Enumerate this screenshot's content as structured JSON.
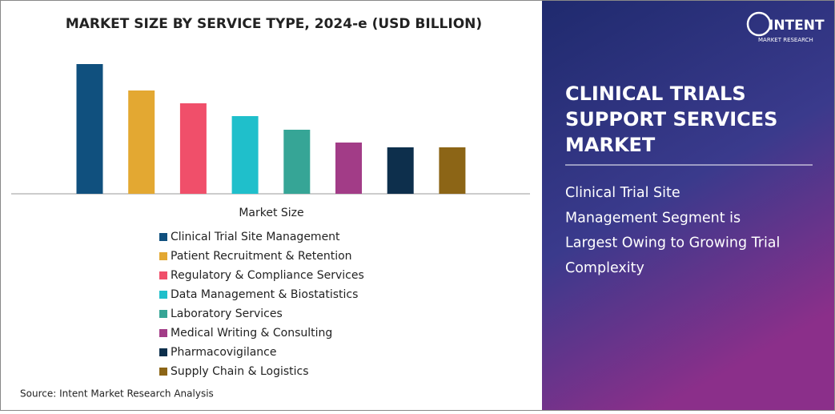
{
  "chart_data": {
    "type": "bar",
    "title": "MARKET SIZE BY SERVICE TYPE, 2024-e (USD BILLION)",
    "x_label": "Market Size",
    "categories": [
      "Clinical Trial Site Management",
      "Patient Recruitment & Retention",
      "Regulatory & Compliance Services",
      "Data Management & Biostatistics",
      "Laboratory Services",
      "Medical Writing & Consulting",
      "Pharmacovigilance",
      "Supply Chain & Logistics"
    ],
    "values": [
      16.2,
      12.9,
      11.3,
      9.7,
      8.0,
      6.4,
      5.8,
      5.8
    ],
    "colors": [
      "#10507e",
      "#e3a832",
      "#f04f6a",
      "#1fbfcb",
      "#36a596",
      "#a23c87",
      "#0d2f4c",
      "#8c6516"
    ],
    "source": "Source: Intent Market Research Analysis"
  },
  "panel": {
    "logo": "INTENT",
    "logo_sub": "MARKET RESEARCH",
    "heading": [
      "CLINICAL TRIALS",
      "SUPPORT SERVICES",
      "MARKET"
    ],
    "summary": [
      "Clinical Trial Site",
      "Management Segment is",
      "Largest Owing to Growing Trial",
      "Complexity"
    ]
  }
}
